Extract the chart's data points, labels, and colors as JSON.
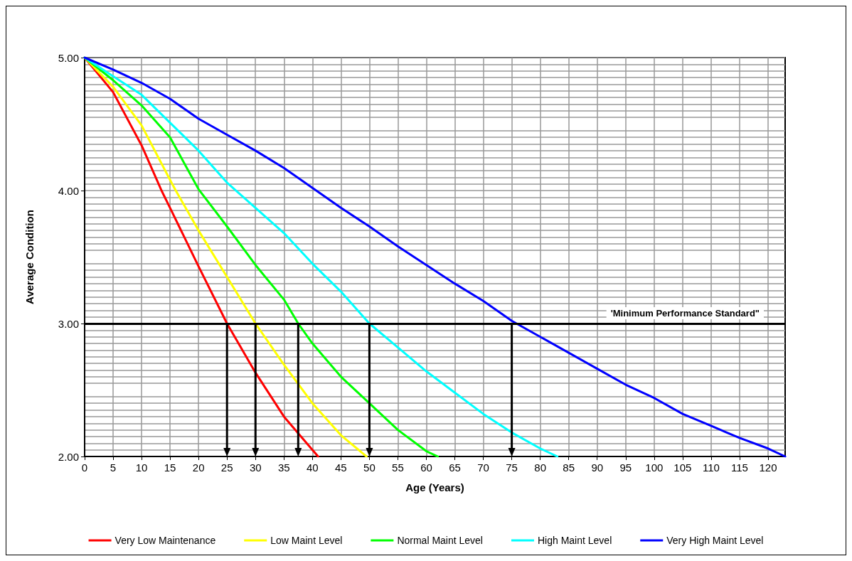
{
  "chart_data": {
    "type": "line",
    "xlabel": "Age (Years)",
    "ylabel": "Average Condition",
    "xlim": [
      0,
      123
    ],
    "xticks": [
      0,
      5,
      10,
      15,
      20,
      25,
      30,
      35,
      40,
      45,
      50,
      55,
      60,
      65,
      70,
      75,
      80,
      85,
      90,
      95,
      100,
      105,
      110,
      115,
      120
    ],
    "ylim": [
      2,
      5
    ],
    "yticks": [
      {
        "value": 2,
        "label": "2.00"
      },
      {
        "value": 3,
        "label": "3.00"
      },
      {
        "value": 4,
        "label": "4.00"
      },
      {
        "value": 5,
        "label": "5.00"
      }
    ],
    "grid": true,
    "legend": "bottom",
    "marker": "none",
    "line_style": "solid",
    "series": [
      {
        "name": "Very Low Maintenance",
        "color": "#ff0000",
        "x": [
          0,
          5,
          10,
          13.5,
          15,
          20,
          25,
          30,
          35,
          40,
          41
        ],
        "values": [
          5,
          4.74,
          4.34,
          4,
          3.87,
          3.43,
          3,
          2.63,
          2.3,
          2.05,
          2
        ]
      },
      {
        "name": "Low Maint Level",
        "color": "#ffff00",
        "x": [
          0,
          5,
          10,
          15,
          16,
          20,
          25,
          30,
          35,
          40,
          45,
          49.5
        ],
        "values": [
          5,
          4.78,
          4.49,
          4.08,
          4,
          3.7,
          3.35,
          3,
          2.69,
          2.4,
          2.16,
          2
        ]
      },
      {
        "name": "Normal Maint Level",
        "color": "#00ff00",
        "x": [
          0,
          5,
          10,
          15,
          20,
          25,
          30,
          35,
          37.5,
          40,
          45,
          50,
          55,
          60,
          62
        ],
        "values": [
          5,
          4.83,
          4.64,
          4.4,
          4.01,
          3.73,
          3.44,
          3.18,
          3,
          2.85,
          2.6,
          2.4,
          2.2,
          2.04,
          2
        ]
      },
      {
        "name": "High Maint Level",
        "color": "#00ffff",
        "x": [
          0,
          5,
          10,
          15,
          20,
          25,
          30,
          35,
          40,
          45,
          50,
          55,
          60,
          65,
          70,
          75,
          80,
          83
        ],
        "values": [
          5,
          4.86,
          4.72,
          4.51,
          4.3,
          4.06,
          3.87,
          3.68,
          3.45,
          3.24,
          3,
          2.82,
          2.64,
          2.48,
          2.32,
          2.18,
          2.06,
          2
        ]
      },
      {
        "name": "Very High Maint Level",
        "color": "#0000ff",
        "x": [
          0,
          5,
          10,
          15,
          20,
          25,
          30,
          35,
          40,
          45,
          50,
          55,
          60,
          65,
          70,
          75,
          80,
          85,
          90,
          95,
          100,
          105,
          110,
          115,
          120,
          123
        ],
        "values": [
          5,
          4.91,
          4.81,
          4.69,
          4.54,
          4.42,
          4.3,
          4.17,
          4.02,
          3.87,
          3.73,
          3.58,
          3.44,
          3.3,
          3.17,
          3.02,
          2.9,
          2.78,
          2.66,
          2.54,
          2.44,
          2.32,
          2.23,
          2.14,
          2.06,
          2
        ]
      }
    ],
    "ref_lines": [
      {
        "axis": "y",
        "value": 3,
        "label": "'Minimum Performance Standard\"",
        "color": "#000000"
      },
      {
        "axis": "x",
        "value": 25,
        "color": "#000000"
      },
      {
        "axis": "x",
        "value": 30,
        "color": "#000000"
      },
      {
        "axis": "x",
        "value": 37.5,
        "color": "#000000"
      },
      {
        "axis": "x",
        "value": 50,
        "color": "#000000"
      },
      {
        "axis": "x",
        "value": 75,
        "color": "#000000"
      }
    ]
  }
}
